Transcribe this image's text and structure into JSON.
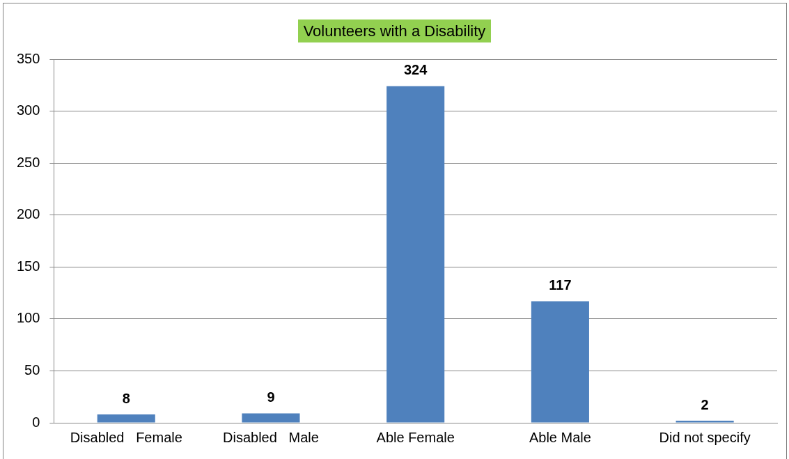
{
  "chart_data": {
    "type": "bar",
    "title": "Volunteers with a Disability",
    "categories": [
      "Disabled   Female",
      "Disabled   Male",
      "Able Female",
      "Able Male",
      "Did not specify"
    ],
    "values": [
      8,
      9,
      324,
      117,
      2
    ],
    "color": "#4f81bd",
    "ylim": [
      0,
      350
    ],
    "yticks": [
      0,
      50,
      100,
      150,
      200,
      250,
      300,
      350
    ],
    "grid": "y",
    "data_labels": true,
    "legend": false
  }
}
